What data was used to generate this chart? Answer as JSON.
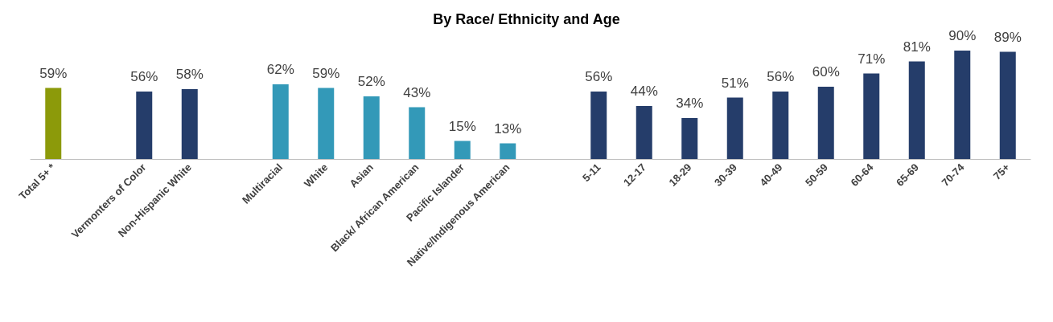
{
  "chart_data": {
    "type": "bar",
    "title": "By Race/ Ethnicity and Age",
    "categories": [
      "Total 5+ *",
      null,
      "Vermonters of Color",
      "Non-Hispanic White",
      null,
      "Multiracial",
      "White",
      "Asian",
      "Black/ African American",
      "Pacific Islander",
      "Native/Indigenous American",
      null,
      "5-11",
      "12-17",
      "18-29",
      "30-39",
      "40-49",
      "50-59",
      "60-64",
      "65-69",
      "70-74",
      "75+"
    ],
    "values": [
      59,
      null,
      56,
      58,
      null,
      62,
      59,
      52,
      43,
      15,
      13,
      null,
      56,
      44,
      34,
      51,
      56,
      60,
      71,
      81,
      90,
      89
    ],
    "value_labels": [
      "59%",
      null,
      "56%",
      "58%",
      null,
      "62%",
      "59%",
      "52%",
      "43%",
      "15%",
      "13%",
      null,
      "56%",
      "44%",
      "34%",
      "51%",
      "56%",
      "60%",
      "71%",
      "81%",
      "90%",
      "89%"
    ],
    "colors": [
      "#8c9a0a",
      null,
      "#253d6a",
      "#253d6a",
      null,
      "#3399b8",
      "#3399b8",
      "#3399b8",
      "#3399b8",
      "#3399b8",
      "#3399b8",
      null,
      "#253d6a",
      "#253d6a",
      "#253d6a",
      "#253d6a",
      "#253d6a",
      "#253d6a",
      "#253d6a",
      "#253d6a",
      "#253d6a",
      "#253d6a"
    ]
  }
}
